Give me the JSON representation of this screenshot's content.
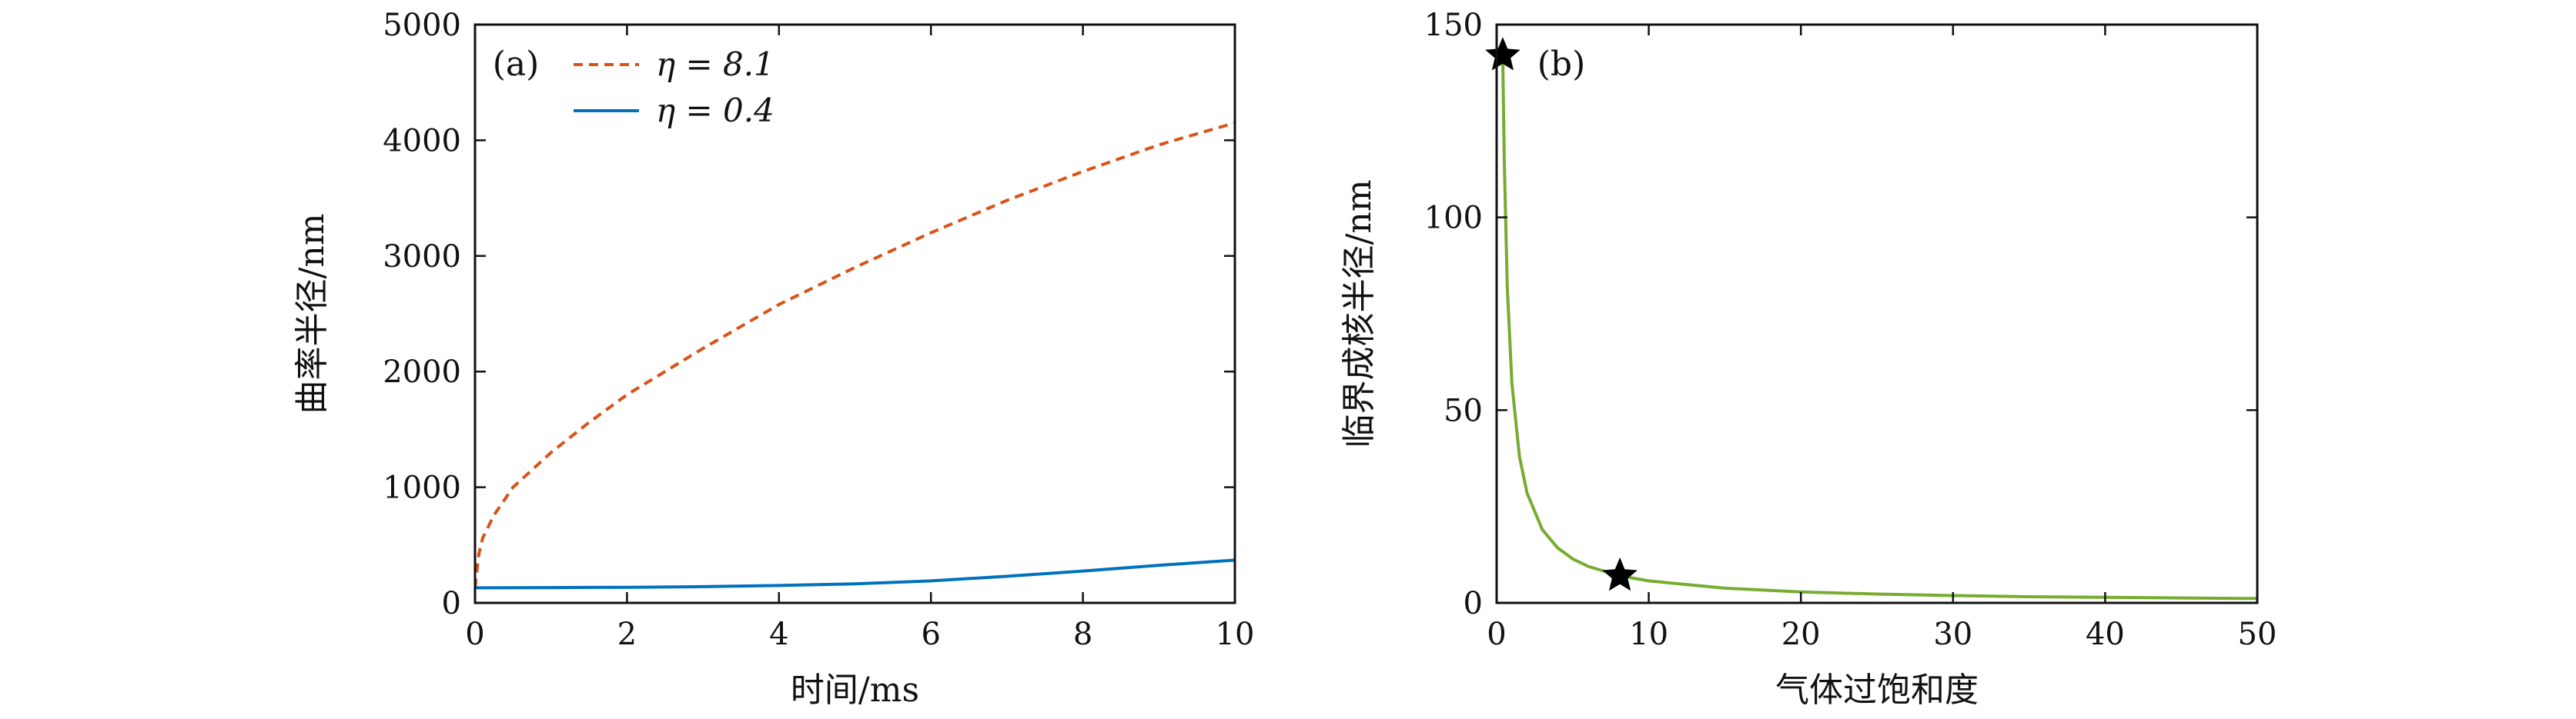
{
  "chart_data": [
    {
      "type": "line",
      "panel_label": "(a)",
      "xlabel": "时间/ms",
      "ylabel": "曲率半径/nm",
      "xlim": [
        0,
        10
      ],
      "ylim": [
        0,
        5000
      ],
      "xticks": [
        0,
        2,
        4,
        6,
        8,
        10
      ],
      "yticks": [
        0,
        1000,
        2000,
        3000,
        4000,
        5000
      ],
      "grid": false,
      "legend_position": "top-left",
      "series": [
        {
          "name": "η = 8.1",
          "color": "#d95319",
          "style": "dashed",
          "x": [
            0,
            0.05,
            0.1,
            0.25,
            0.5,
            1,
            1.5,
            2,
            3,
            4,
            5,
            6,
            7,
            8,
            9,
            10
          ],
          "y": [
            130,
            420,
            560,
            760,
            1000,
            1300,
            1560,
            1800,
            2200,
            2580,
            2900,
            3200,
            3480,
            3730,
            3960,
            4150
          ]
        },
        {
          "name": "η = 0.4",
          "color": "#0072bd",
          "style": "solid",
          "x": [
            0,
            1,
            2,
            3,
            4,
            5,
            6,
            7,
            8,
            9,
            10
          ],
          "y": [
            130,
            132,
            135,
            140,
            150,
            165,
            190,
            230,
            275,
            325,
            370
          ]
        }
      ]
    },
    {
      "type": "line",
      "panel_label": "(b)",
      "xlabel": "气体过饱和度",
      "ylabel": "临界成核半径/nm",
      "xlim": [
        0,
        50
      ],
      "ylim": [
        0,
        150
      ],
      "xticks": [
        0,
        10,
        20,
        30,
        40,
        50
      ],
      "yticks": [
        0,
        50,
        100,
        150
      ],
      "grid": false,
      "series": [
        {
          "color": "#77ac30",
          "style": "solid",
          "x": [
            0.4,
            0.5,
            0.7,
            1,
            1.5,
            2,
            3,
            4,
            5,
            6,
            8,
            10,
            15,
            20,
            25,
            30,
            35,
            40,
            45,
            50
          ],
          "y": [
            142,
            115,
            82,
            57,
            38,
            28.5,
            19,
            14.3,
            11.4,
            9.5,
            7.1,
            5.7,
            3.8,
            2.85,
            2.3,
            1.9,
            1.6,
            1.43,
            1.27,
            1.14
          ]
        }
      ],
      "markers": {
        "shape": "star",
        "color": "#000000",
        "points": [
          [
            0.4,
            142
          ],
          [
            8.1,
            7.0
          ]
        ]
      }
    }
  ]
}
